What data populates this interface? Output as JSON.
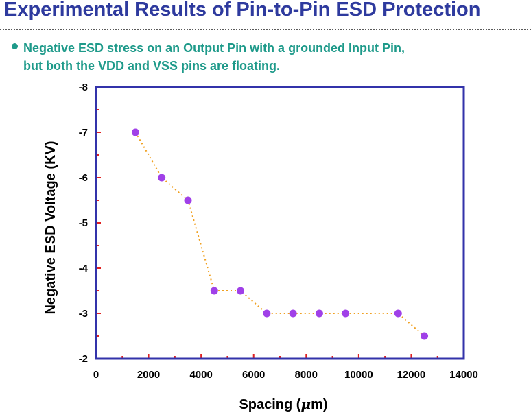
{
  "header": {
    "title": "Experimental Results of Pin-to-Pin ESD Protection"
  },
  "bullet": {
    "line1": "Negative ESD stress on an Output Pin with a grounded Input Pin,",
    "line2": "but both the VDD and VSS pins are floating."
  },
  "colors": {
    "title": "#2e3a9e",
    "bullet": "#1e9a8a",
    "frame": "#3333aa",
    "tick": "#e02020",
    "marker": "#a040e8",
    "line": "#f0a020"
  },
  "chart_data": {
    "type": "scatter",
    "xlabel_prefix": "Spacing (",
    "xlabel_mu": "μ",
    "xlabel_suffix": "m)",
    "ylabel": "Negative ESD Voltage (KV)",
    "xlim": [
      0,
      14000
    ],
    "ylim": [
      -2,
      -8
    ],
    "xticks": [
      "0",
      "2000",
      "4000",
      "6000",
      "8000",
      "10000",
      "12000",
      "14000"
    ],
    "yticks": [
      "-2",
      "-3",
      "-4",
      "-5",
      "-6",
      "-7",
      "-8"
    ],
    "grid": false,
    "series": [
      {
        "x": [
          1500,
          2500,
          3500,
          4500,
          5500,
          6500,
          7500,
          8500,
          9500,
          11500,
          12500
        ],
        "y": [
          -7,
          -6,
          -5.5,
          -3.5,
          -3.5,
          -3,
          -3,
          -3,
          -3,
          -3,
          -2.5
        ]
      }
    ]
  }
}
